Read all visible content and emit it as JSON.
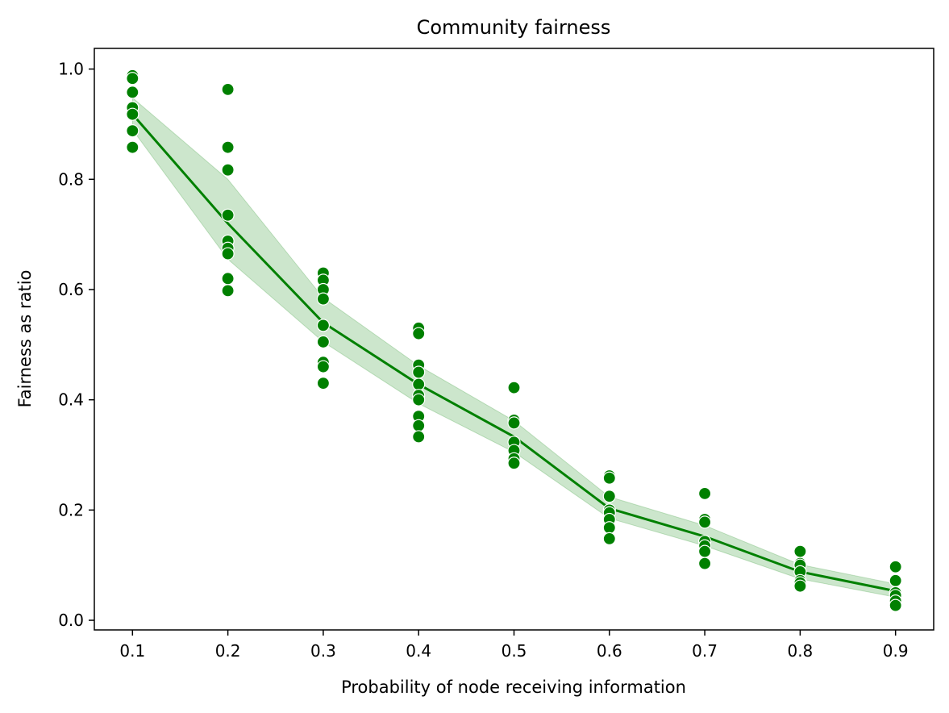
{
  "chart_data": {
    "type": "line",
    "title": "Community fairness",
    "xlabel": "Probability of node receiving information",
    "ylabel": "Fairness as ratio",
    "xlim": [
      0.06,
      0.94
    ],
    "ylim": [
      -0.0175,
      1.0375
    ],
    "x_ticks": [
      "0.1",
      "0.2",
      "0.3",
      "0.4",
      "0.5",
      "0.6",
      "0.7",
      "0.8",
      "0.9"
    ],
    "y_ticks": [
      "0.0",
      "0.2",
      "0.4",
      "0.6",
      "0.8",
      "1.0"
    ],
    "grid": false,
    "legend": "none",
    "color": "#008000",
    "band_color": "#008000",
    "mean_line": {
      "x": [
        0.1,
        0.2,
        0.3,
        0.4,
        0.5,
        0.6,
        0.7,
        0.8,
        0.9
      ],
      "y": [
        0.918,
        0.72,
        0.54,
        0.428,
        0.333,
        0.203,
        0.152,
        0.088,
        0.053
      ]
    },
    "confidence_band": {
      "x": [
        0.1,
        0.2,
        0.3,
        0.4,
        0.5,
        0.6,
        0.7,
        0.8,
        0.9
      ],
      "lower": [
        0.89,
        0.655,
        0.505,
        0.393,
        0.305,
        0.185,
        0.135,
        0.075,
        0.042
      ],
      "upper": [
        0.948,
        0.8,
        0.585,
        0.462,
        0.362,
        0.224,
        0.172,
        0.101,
        0.066
      ]
    },
    "scatter": [
      {
        "x": 0.1,
        "y": [
          0.988,
          0.983,
          0.958,
          0.93,
          0.918,
          0.888,
          0.858
        ]
      },
      {
        "x": 0.2,
        "y": [
          0.963,
          0.858,
          0.817,
          0.735,
          0.688,
          0.675,
          0.665,
          0.62,
          0.598
        ]
      },
      {
        "x": 0.3,
        "y": [
          0.63,
          0.617,
          0.6,
          0.583,
          0.535,
          0.505,
          0.468,
          0.46,
          0.43
        ]
      },
      {
        "x": 0.4,
        "y": [
          0.53,
          0.52,
          0.463,
          0.45,
          0.428,
          0.408,
          0.4,
          0.37,
          0.353,
          0.333
        ]
      },
      {
        "x": 0.5,
        "y": [
          0.422,
          0.363,
          0.358,
          0.323,
          0.308,
          0.293,
          0.285
        ]
      },
      {
        "x": 0.6,
        "y": [
          0.262,
          0.258,
          0.225,
          0.2,
          0.195,
          0.183,
          0.168,
          0.148
        ]
      },
      {
        "x": 0.7,
        "y": [
          0.23,
          0.183,
          0.178,
          0.143,
          0.135,
          0.125,
          0.103
        ]
      },
      {
        "x": 0.8,
        "y": [
          0.125,
          0.103,
          0.1,
          0.088,
          0.072,
          0.068,
          0.062
        ]
      },
      {
        "x": 0.9,
        "y": [
          0.097,
          0.073,
          0.072,
          0.05,
          0.045,
          0.035,
          0.027
        ]
      }
    ]
  }
}
